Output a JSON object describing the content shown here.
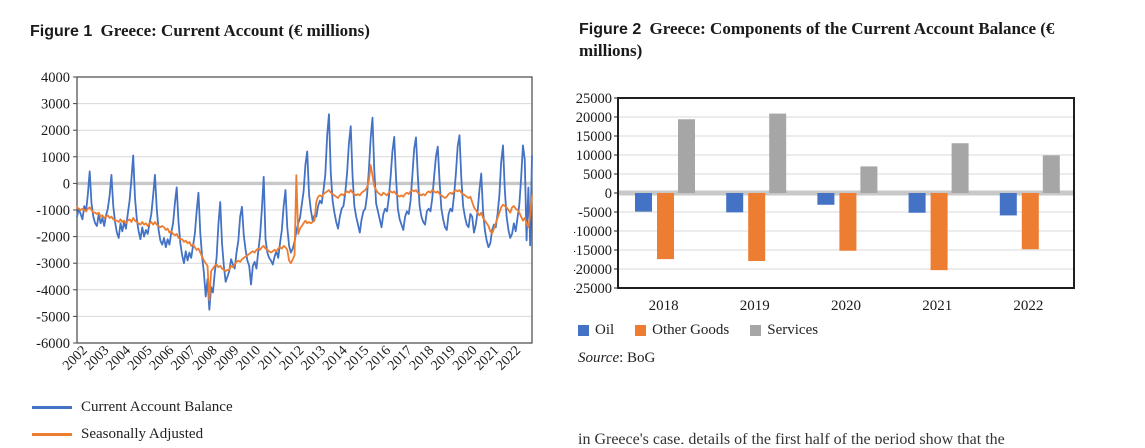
{
  "figure1": {
    "title_prefix": "Figure 1",
    "title": "Greece: Current Account (€ millions)",
    "legend": [
      {
        "label": "Current Account Balance",
        "color": "#4472C4"
      },
      {
        "label": "Seasonally Adjusted",
        "color": "#ED7D31"
      }
    ]
  },
  "figure2": {
    "title_prefix": "Figure 2",
    "title": "Greece: Components of the Current Account Balance (€ millions)",
    "legend": [
      {
        "label": "Oil",
        "color": "#4472C4"
      },
      {
        "label": "Other Goods",
        "color": "#ED7D31"
      },
      {
        "label": "Services",
        "color": "#A6A6A6"
      }
    ],
    "source_label": "Source",
    "source_value": ": BoG"
  },
  "footer_fragment": "in Greece's case, details of the first half of the period show that the",
  "colors": {
    "blue": "#4472C4",
    "orange": "#ED7D31",
    "gray": "#A6A6A6",
    "grid": "#D9D9D9",
    "zero": "#C8C8C8",
    "border1": "#474747",
    "border2": "#1f1f1f"
  },
  "chart_data": [
    {
      "type": "line",
      "title": "Greece: Current Account (€ millions)",
      "x_years": [
        "2002",
        "2003",
        "2004",
        "2005",
        "2006",
        "2007",
        "2008",
        "2009",
        "2010",
        "2011",
        "2012",
        "2013",
        "2014",
        "2015",
        "2016",
        "2017",
        "2018",
        "2019",
        "2020",
        "2021",
        "2022"
      ],
      "frequency": "monthly",
      "ylim": [
        -6000,
        4000
      ],
      "ytick_step": 1000,
      "grid": true,
      "legend_position": "bottom-left",
      "series": [
        {
          "name": "Current Account Balance",
          "color": "#4472C4",
          "values_by_year": [
            [
              -1250,
              -950,
              -1150,
              -1350,
              -850,
              -1050,
              -400,
              450,
              -750,
              -1250,
              -1500,
              -1600
            ],
            [
              -1150,
              -1500,
              -1300,
              -1600,
              -1200,
              -950,
              -450,
              320,
              -850,
              -1450,
              -1850,
              -2050
            ],
            [
              -1500,
              -1800,
              -1450,
              -1700,
              -1150,
              -650,
              150,
              1050,
              -550,
              -1350,
              -1800,
              -2100
            ],
            [
              -1650,
              -2000,
              -1750,
              -1900,
              -1500,
              -1150,
              -450,
              320,
              -950,
              -1750,
              -2150,
              -2300
            ],
            [
              -2050,
              -2400,
              -2100,
              -2300,
              -1850,
              -1500,
              -750,
              -150,
              -1450,
              -2250,
              -2700,
              -3000
            ],
            [
              -2550,
              -2900,
              -2600,
              -2800,
              -2350,
              -1900,
              -1050,
              -350,
              -1850,
              -2750,
              -3350,
              -4250
            ],
            [
              -3600,
              -4750,
              -3900,
              -4100,
              -3350,
              -2800,
              -1550,
              -700,
              -2250,
              -3100,
              -3700,
              -3500
            ],
            [
              -3300,
              -2850,
              -3050,
              -3200,
              -2600,
              -2150,
              -1250,
              -880,
              -1950,
              -2500,
              -2900,
              -3100
            ],
            [
              -3800,
              -3100,
              -2950,
              -3200,
              -2550,
              -1950,
              -950,
              250,
              -2100,
              -2600,
              -2800,
              -2900
            ],
            [
              -3050,
              -2750,
              -2550,
              -2800,
              -2250,
              -1750,
              -850,
              -250,
              -1650,
              -2350,
              -2600,
              -2450
            ],
            [
              -2200,
              -1800,
              -1500,
              -1300,
              -800,
              -300,
              700,
              1200,
              -400,
              -1000,
              -1400,
              -1200
            ],
            [
              -1250,
              -850,
              -650,
              -750,
              -250,
              350,
              1800,
              2600,
              400,
              -650,
              -1100,
              -1450
            ],
            [
              -1700,
              -1250,
              -950,
              -850,
              -350,
              400,
              1500,
              2150,
              300,
              -850,
              -1250,
              -1550
            ],
            [
              -1850,
              -1350,
              -1050,
              -950,
              -450,
              500,
              1700,
              2470,
              500,
              -750,
              -1050,
              -1350
            ],
            [
              -1650,
              -1150,
              -950,
              -1050,
              -550,
              250,
              1200,
              1750,
              200,
              -950,
              -1350,
              -1550
            ],
            [
              -1750,
              -1250,
              -1050,
              -1150,
              -650,
              300,
              1300,
              1730,
              300,
              -850,
              -1250,
              -1450
            ],
            [
              -1550,
              -1050,
              -950,
              -1050,
              -550,
              250,
              1000,
              1380,
              100,
              -950,
              -1350,
              -1650
            ],
            [
              -1750,
              -1150,
              -950,
              -1050,
              -450,
              350,
              1400,
              1810,
              200,
              -850,
              -1250,
              -1550
            ],
            [
              -1650,
              -1150,
              -1250,
              -1850,
              -1550,
              -1050,
              -250,
              370,
              -1050,
              -1750,
              -2150,
              -2400
            ],
            [
              -2250,
              -1750,
              -1550,
              -1650,
              -1150,
              -450,
              800,
              1430,
              -250,
              -1250,
              -1750,
              -2050
            ],
            [
              -1900,
              -1500,
              -1800,
              -1300,
              -800,
              200,
              1430,
              900,
              -2140,
              -150,
              -2330,
              1050
            ]
          ]
        },
        {
          "name": "Seasonally Adjusted",
          "color": "#ED7D31",
          "values_by_year": [
            [
              -900,
              -950,
              -1000,
              -950,
              -1000,
              -1050,
              -950,
              -900,
              -1000,
              -1100,
              -1100,
              -1150
            ],
            [
              -1100,
              -1250,
              -1200,
              -1300,
              -1250,
              -1200,
              -1300,
              -1250,
              -1350,
              -1400,
              -1400,
              -1450
            ],
            [
              -1350,
              -1450,
              -1400,
              -1500,
              -1400,
              -1350,
              -1450,
              -1300,
              -1400,
              -1450,
              -1500,
              -1550
            ],
            [
              -1450,
              -1550,
              -1500,
              -1600,
              -1500,
              -1450,
              -1550,
              -1450,
              -1550,
              -1600,
              -1650,
              -1600
            ],
            [
              -1650,
              -1750,
              -1700,
              -1850,
              -1800,
              -1900,
              -1950,
              -1900,
              -2050,
              -2100,
              -2100,
              -2200
            ],
            [
              -2150,
              -2250,
              -2200,
              -2350,
              -2300,
              -2400,
              -2500,
              -2450,
              -2600,
              -2750,
              -2900,
              -3000
            ],
            [
              -3100,
              -4400,
              -3300,
              -3200,
              -3100,
              -3050,
              -3150,
              -3100,
              -3200,
              -3250,
              -3300,
              -3250
            ],
            [
              -3250,
              -3100,
              -3150,
              -3050,
              -2950,
              -2900,
              -2950,
              -2850,
              -2800,
              -2750,
              -2700,
              -2650
            ],
            [
              -2600,
              -2550,
              -2600,
              -2500,
              -2450,
              -2500,
              -2400,
              -2350,
              -2450,
              -2500,
              -2550,
              -2600
            ],
            [
              -2550,
              -2500,
              -2550,
              -2450,
              -2400,
              -2450,
              -2350,
              -2400,
              -2500,
              -2900,
              -3000,
              -2850
            ],
            [
              -2700,
              310,
              -1900,
              -1700,
              -1600,
              -1500,
              -1400,
              -1500,
              -1450,
              -1500,
              -1450,
              -1400
            ],
            [
              -700,
              -500,
              -450,
              -500,
              -400,
              -350,
              -300,
              -250,
              -350,
              -400,
              -450,
              -500
            ],
            [
              -550,
              -450,
              -400,
              -450,
              -350,
              -300,
              -350,
              -250,
              -350,
              -400,
              -450,
              -400
            ],
            [
              -450,
              -350,
              -300,
              -250,
              -150,
              100,
              690,
              300,
              -100,
              -250,
              -350,
              -400
            ],
            [
              -450,
              -350,
              -400,
              -450,
              -350,
              -300,
              -350,
              -300,
              -400,
              -450,
              -500,
              -450
            ],
            [
              -500,
              -400,
              -350,
              -400,
              -300,
              -250,
              -300,
              -250,
              -350,
              -400,
              -450,
              -400
            ],
            [
              -450,
              -350,
              -300,
              -350,
              -250,
              -300,
              -350,
              -300,
              -400,
              -450,
              -500,
              -550
            ],
            [
              -500,
              -400,
              -350,
              -400,
              -300,
              -250,
              -300,
              -250,
              -350,
              -400,
              -450,
              -500
            ],
            [
              -550,
              -500,
              -700,
              -900,
              -1000,
              -1100,
              -1200,
              -1100,
              -1300,
              -1400,
              -1500,
              -1600
            ],
            [
              -1800,
              -1875,
              -1700,
              -1500,
              -1300,
              -1100,
              -900,
              -800,
              -850,
              -900,
              -1000,
              -1100
            ],
            [
              -900,
              -850,
              -950,
              -1000,
              -1100,
              -1250,
              -1400,
              -1300,
              -1500,
              -1640,
              -1200,
              -450
            ]
          ]
        }
      ]
    },
    {
      "type": "bar",
      "title": "Greece: Components of the Current Account Balance (€ millions)",
      "categories": [
        "2018",
        "2019",
        "2020",
        "2021",
        "2022"
      ],
      "ylim": [
        -25000,
        25000
      ],
      "ytick_step": 5000,
      "grid": true,
      "legend_position": "bottom-left",
      "source": "BoG",
      "series": [
        {
          "name": "Oil",
          "color": "#4472C4",
          "values": [
            -4900,
            -5100,
            -3100,
            -5200,
            -5900
          ]
        },
        {
          "name": "Other Goods",
          "color": "#ED7D31",
          "values": [
            -17400,
            -17900,
            -15200,
            -20300,
            -14800
          ]
        },
        {
          "name": "Services",
          "color": "#A6A6A6",
          "values": [
            19400,
            20900,
            7000,
            13100,
            9900
          ]
        }
      ]
    }
  ]
}
